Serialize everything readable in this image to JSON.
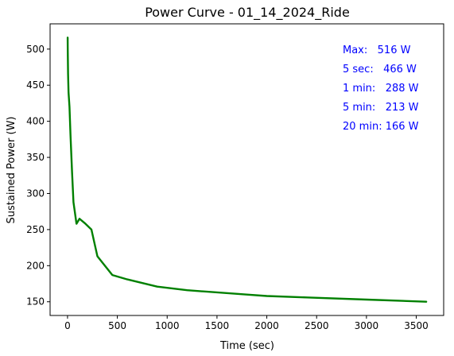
{
  "chart_data": {
    "type": "line",
    "title": "Power Curve - 01_14_2024_Ride",
    "xlabel": "Time (sec)",
    "ylabel": "Sustained Power (W)",
    "xlim": [
      -175,
      3775
    ],
    "ylim": [
      131,
      535
    ],
    "xticks": [
      0,
      500,
      1000,
      1500,
      2000,
      2500,
      3000,
      3500
    ],
    "yticks": [
      150,
      200,
      250,
      300,
      350,
      400,
      450,
      500
    ],
    "grid": false,
    "series": [
      {
        "color": "#008000",
        "x": [
          1,
          2,
          5,
          10,
          20,
          30,
          45,
          60,
          90,
          120,
          180,
          240,
          300,
          450,
          600,
          900,
          1200,
          1800,
          2000,
          2400,
          3000,
          3600
        ],
        "y": [
          516,
          500,
          466,
          440,
          420,
          380,
          330,
          288,
          258,
          265,
          258,
          250,
          213,
          187,
          181,
          171,
          166,
          160,
          158,
          156,
          153,
          150
        ]
      }
    ],
    "annotations": [
      "Max:   516 W",
      "5 sec:   466 W",
      "1 min:   288 W",
      "5 min:   213 W",
      "20 min: 166 W"
    ],
    "annotation_color": "#0000ff"
  }
}
